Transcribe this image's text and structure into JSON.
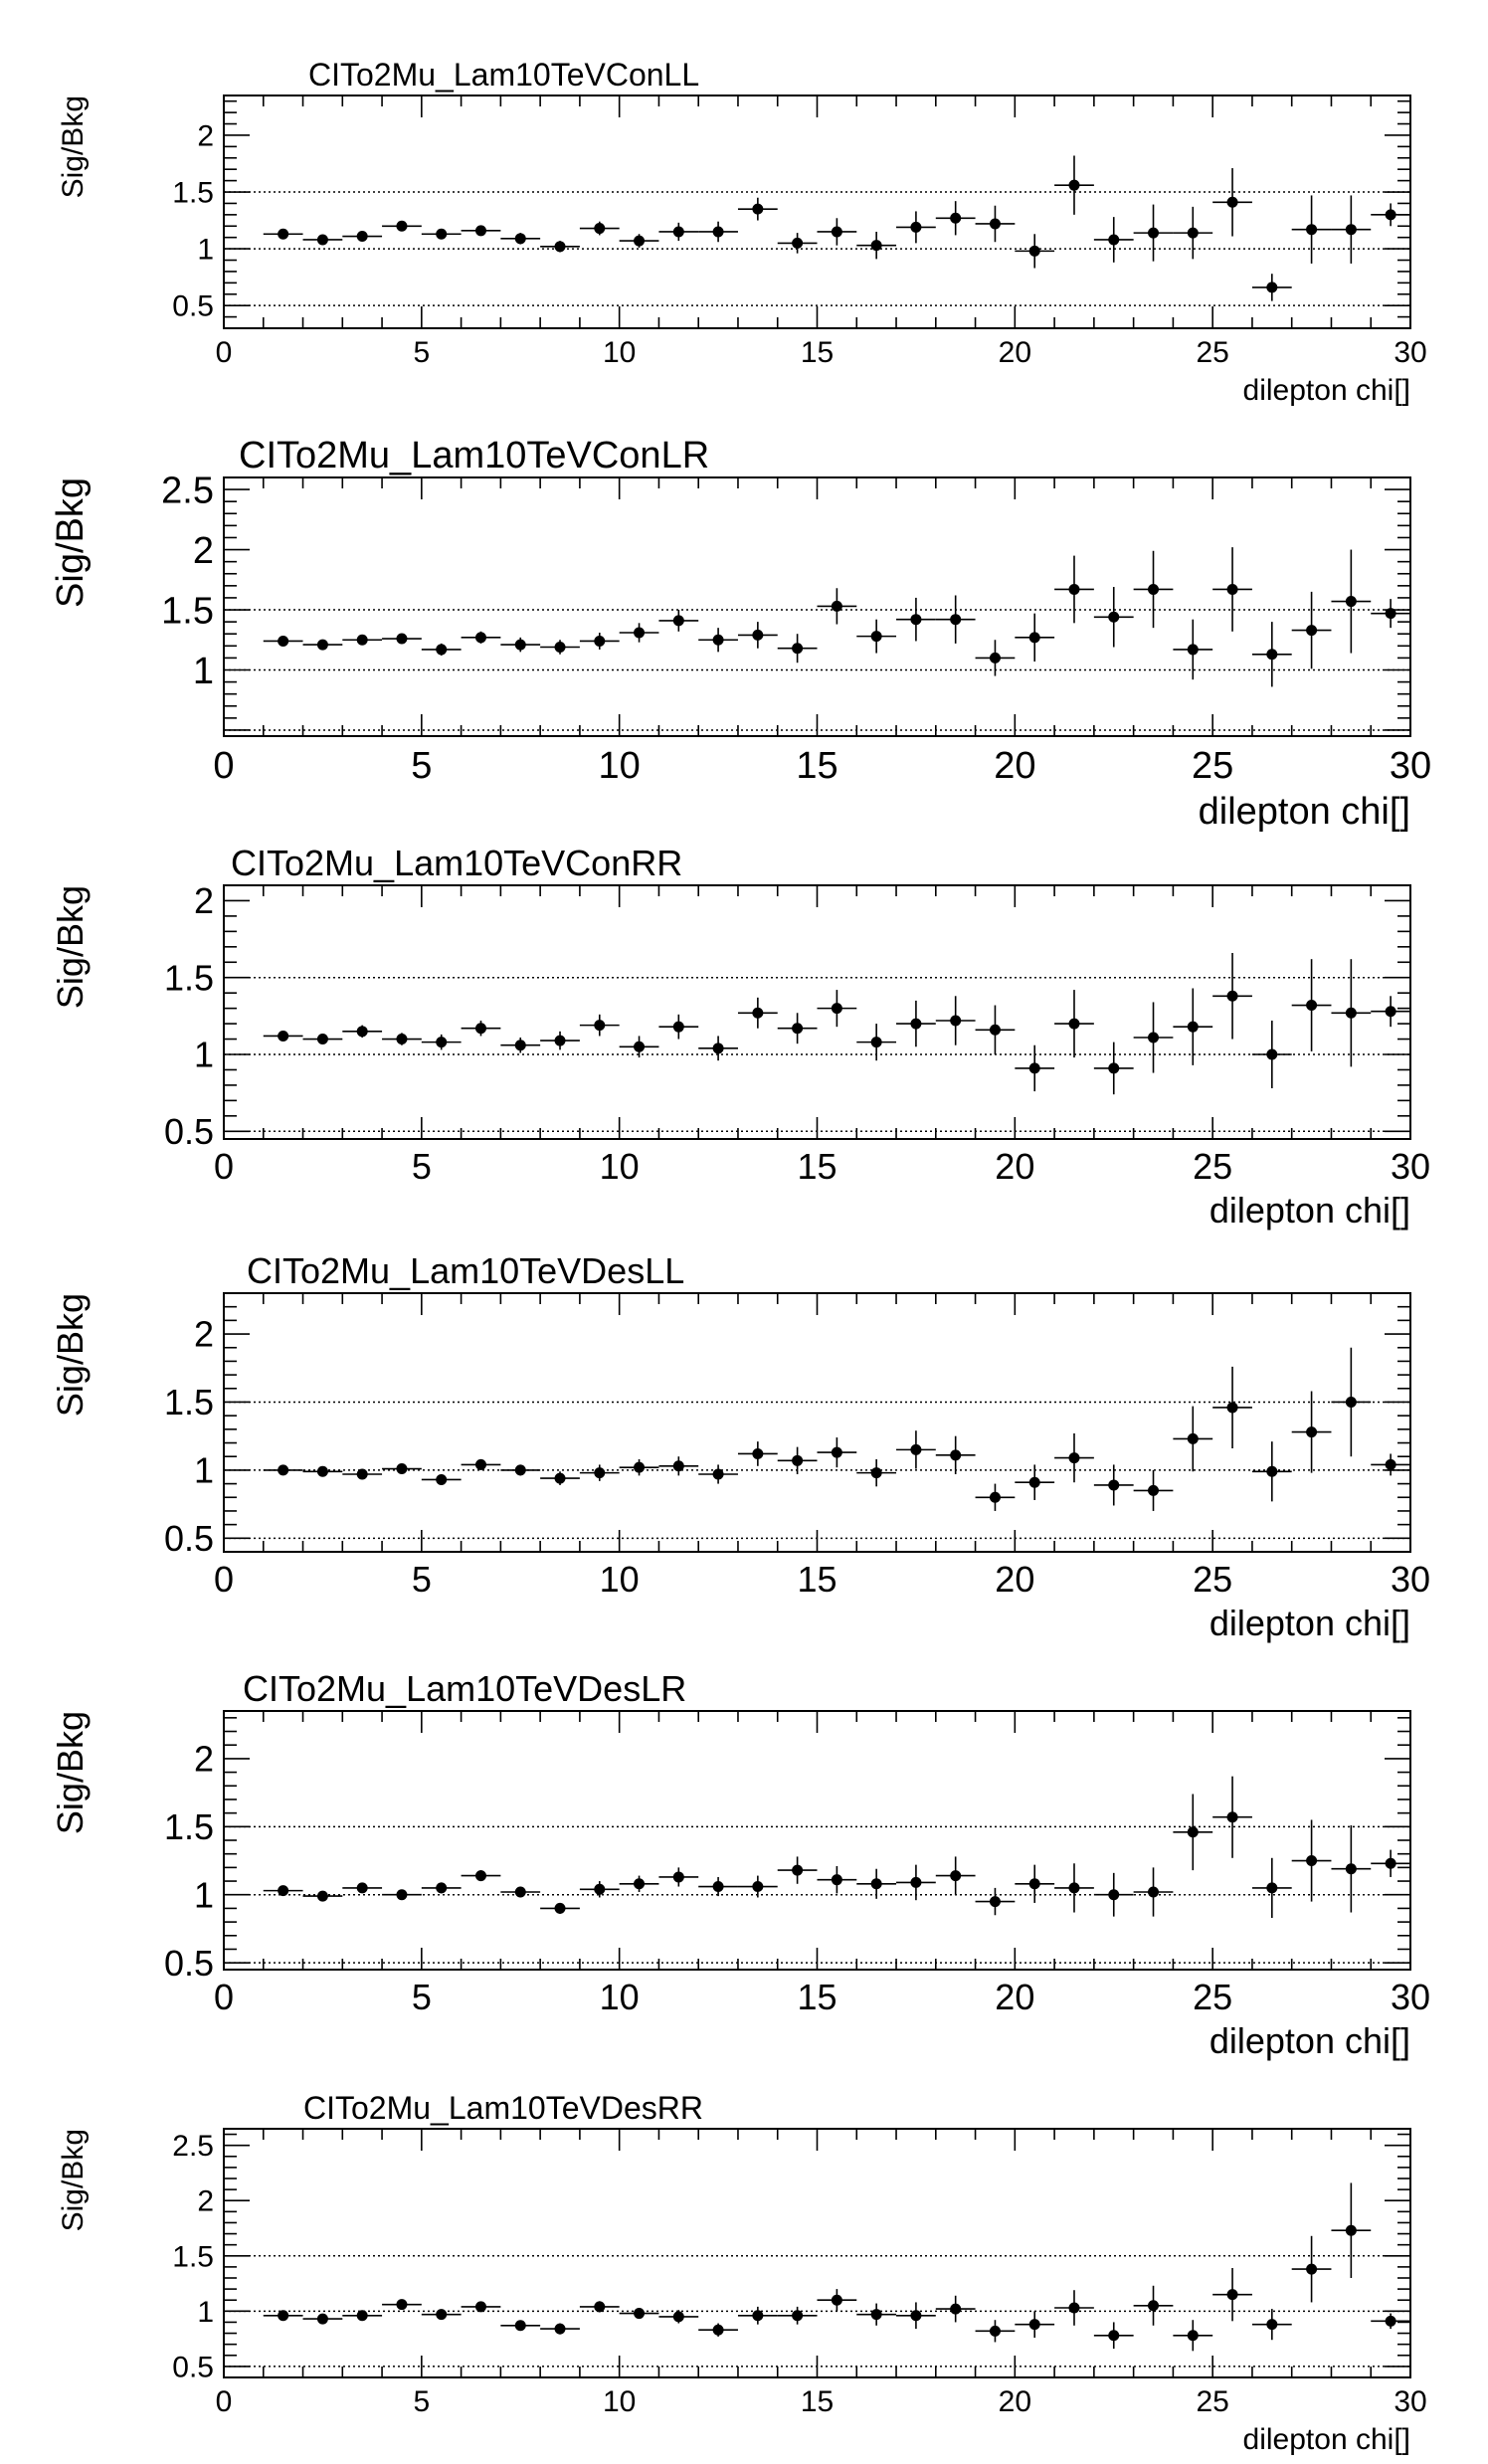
{
  "chart_data": [
    {
      "type": "scatter",
      "title": "CITo2Mu_Lam10TeVConLL",
      "xlabel": "dilepton chi[]",
      "ylabel": "Sig/Bkg",
      "xlim": [
        0,
        30
      ],
      "ylim": [
        0.3,
        2.35
      ],
      "xticks": [
        0,
        5,
        10,
        15,
        20,
        25,
        30
      ],
      "yticks": [
        0.5,
        1,
        1.5,
        2
      ],
      "ytick_labels": [
        "0.5",
        "1",
        "1.5",
        "2"
      ],
      "reference_lines": [
        0.5,
        1,
        1.5
      ],
      "x": [
        1.5,
        2.5,
        3.5,
        4.5,
        5.5,
        6.5,
        7.5,
        8.5,
        9.5,
        10.5,
        11.5,
        12.5,
        13.5,
        14.5,
        15.5,
        16.5,
        17.5,
        18.5,
        19.5,
        20.5,
        21.5,
        22.5,
        23.5,
        24.5,
        25.5,
        26.5,
        27.5,
        28.5,
        29.5
      ],
      "y": [
        1.13,
        1.08,
        1.11,
        1.2,
        1.13,
        1.16,
        1.09,
        1.02,
        1.18,
        1.07,
        1.15,
        1.15,
        1.35,
        1.05,
        1.15,
        1.03,
        1.19,
        1.27,
        1.22,
        0.98,
        1.56,
        1.08,
        1.14,
        1.14,
        1.41,
        0.66,
        1.17,
        1.17,
        1.3
      ],
      "yerr": [
        0.03,
        0.03,
        0.04,
        0.04,
        0.04,
        0.04,
        0.05,
        0.05,
        0.06,
        0.06,
        0.08,
        0.09,
        0.1,
        0.09,
        0.12,
        0.12,
        0.14,
        0.15,
        0.16,
        0.15,
        0.26,
        0.2,
        0.25,
        0.23,
        0.3,
        0.12,
        0.3,
        0.3,
        0.1
      ]
    },
    {
      "type": "scatter",
      "title": "CITo2Mu_Lam10TeVConLR",
      "xlabel": "dilepton chi[]",
      "ylabel": "Sig/Bkg",
      "xlim": [
        0,
        30
      ],
      "ylim": [
        0.45,
        2.6
      ],
      "xticks": [
        0,
        5,
        10,
        15,
        20,
        25,
        30
      ],
      "yticks": [
        1,
        1.5,
        2,
        2.5
      ],
      "ytick_labels": [
        "1",
        "1.5",
        "2",
        "2.5"
      ],
      "reference_lines": [
        0.5,
        1,
        1.5
      ],
      "x": [
        1.5,
        2.5,
        3.5,
        4.5,
        5.5,
        6.5,
        7.5,
        8.5,
        9.5,
        10.5,
        11.5,
        12.5,
        13.5,
        14.5,
        15.5,
        16.5,
        17.5,
        18.5,
        19.5,
        20.5,
        21.5,
        22.5,
        23.5,
        24.5,
        25.5,
        26.5,
        27.5,
        28.5,
        29.5
      ],
      "y": [
        1.24,
        1.21,
        1.25,
        1.26,
        1.17,
        1.27,
        1.21,
        1.19,
        1.24,
        1.31,
        1.41,
        1.25,
        1.29,
        1.18,
        1.53,
        1.28,
        1.42,
        1.42,
        1.1,
        1.27,
        1.67,
        1.44,
        1.67,
        1.17,
        1.67,
        1.13,
        1.33,
        1.57,
        1.47
      ],
      "yerr": [
        0.03,
        0.03,
        0.04,
        0.04,
        0.05,
        0.05,
        0.06,
        0.06,
        0.07,
        0.08,
        0.09,
        0.1,
        0.11,
        0.12,
        0.15,
        0.14,
        0.18,
        0.2,
        0.15,
        0.2,
        0.28,
        0.25,
        0.32,
        0.25,
        0.35,
        0.27,
        0.32,
        0.43,
        0.12
      ]
    },
    {
      "type": "scatter",
      "title": "CITo2Mu_Lam10TeVConRR",
      "xlabel": "dilepton chi[]",
      "ylabel": "Sig/Bkg",
      "xlim": [
        0,
        30
      ],
      "ylim": [
        0.45,
        2.1
      ],
      "xticks": [
        0,
        5,
        10,
        15,
        20,
        25,
        30
      ],
      "yticks": [
        0.5,
        1,
        1.5,
        2
      ],
      "ytick_labels": [
        "0.5",
        "1",
        "1.5",
        "2"
      ],
      "reference_lines": [
        0.5,
        1,
        1.5
      ],
      "x": [
        1.5,
        2.5,
        3.5,
        4.5,
        5.5,
        6.5,
        7.5,
        8.5,
        9.5,
        10.5,
        11.5,
        12.5,
        13.5,
        14.5,
        15.5,
        16.5,
        17.5,
        18.5,
        19.5,
        20.5,
        21.5,
        22.5,
        23.5,
        24.5,
        25.5,
        26.5,
        27.5,
        28.5,
        29.5
      ],
      "y": [
        1.12,
        1.1,
        1.15,
        1.1,
        1.08,
        1.17,
        1.06,
        1.09,
        1.19,
        1.05,
        1.18,
        1.04,
        1.27,
        1.17,
        1.3,
        1.08,
        1.2,
        1.22,
        1.16,
        0.91,
        1.2,
        0.91,
        1.11,
        1.18,
        1.38,
        1.0,
        1.32,
        1.27,
        1.28
      ],
      "yerr": [
        0.03,
        0.03,
        0.04,
        0.04,
        0.05,
        0.05,
        0.05,
        0.06,
        0.07,
        0.07,
        0.08,
        0.08,
        0.1,
        0.1,
        0.12,
        0.12,
        0.15,
        0.16,
        0.16,
        0.15,
        0.22,
        0.17,
        0.23,
        0.25,
        0.28,
        0.22,
        0.3,
        0.35,
        0.1
      ]
    },
    {
      "type": "scatter",
      "title": "CITo2Mu_Lam10TeVDesLL",
      "xlabel": "dilepton chi[]",
      "ylabel": "Sig/Bkg",
      "xlim": [
        0,
        30
      ],
      "ylim": [
        0.4,
        2.3
      ],
      "xticks": [
        0,
        5,
        10,
        15,
        20,
        25,
        30
      ],
      "yticks": [
        0.5,
        1,
        1.5,
        2
      ],
      "ytick_labels": [
        "0.5",
        "1",
        "1.5",
        "2"
      ],
      "reference_lines": [
        0.5,
        1,
        1.5
      ],
      "x": [
        1.5,
        2.5,
        3.5,
        4.5,
        5.5,
        6.5,
        7.5,
        8.5,
        9.5,
        10.5,
        11.5,
        12.5,
        13.5,
        14.5,
        15.5,
        16.5,
        17.5,
        18.5,
        19.5,
        20.5,
        21.5,
        22.5,
        23.5,
        24.5,
        25.5,
        26.5,
        27.5,
        28.5,
        29.5
      ],
      "y": [
        1.0,
        0.99,
        0.97,
        1.01,
        0.93,
        1.04,
        1.0,
        0.94,
        0.98,
        1.02,
        1.03,
        0.97,
        1.12,
        1.07,
        1.13,
        0.98,
        1.15,
        1.11,
        0.8,
        0.91,
        1.09,
        0.89,
        0.85,
        1.23,
        1.46,
        0.99,
        1.28,
        1.5,
        1.04
      ],
      "yerr": [
        0.02,
        0.03,
        0.03,
        0.03,
        0.04,
        0.04,
        0.04,
        0.05,
        0.06,
        0.06,
        0.07,
        0.07,
        0.09,
        0.1,
        0.11,
        0.1,
        0.14,
        0.14,
        0.1,
        0.13,
        0.18,
        0.15,
        0.15,
        0.24,
        0.3,
        0.22,
        0.3,
        0.4,
        0.08
      ]
    },
    {
      "type": "scatter",
      "title": "CITo2Mu_Lam10TeVDesLR",
      "xlabel": "dilepton chi[]",
      "ylabel": "Sig/Bkg",
      "xlim": [
        0,
        30
      ],
      "ylim": [
        0.45,
        2.35
      ],
      "xticks": [
        0,
        5,
        10,
        15,
        20,
        25,
        30
      ],
      "yticks": [
        0.5,
        1,
        1.5,
        2
      ],
      "ytick_labels": [
        "0.5",
        "1",
        "1.5",
        "2"
      ],
      "reference_lines": [
        0.5,
        1,
        1.5
      ],
      "x": [
        1.5,
        2.5,
        3.5,
        4.5,
        5.5,
        6.5,
        7.5,
        8.5,
        9.5,
        10.5,
        11.5,
        12.5,
        13.5,
        14.5,
        15.5,
        16.5,
        17.5,
        18.5,
        19.5,
        20.5,
        21.5,
        22.5,
        23.5,
        24.5,
        25.5,
        26.5,
        27.5,
        28.5,
        29.5
      ],
      "y": [
        1.03,
        0.99,
        1.05,
        1.0,
        1.05,
        1.14,
        1.02,
        0.9,
        1.04,
        1.08,
        1.13,
        1.06,
        1.06,
        1.18,
        1.11,
        1.08,
        1.09,
        1.14,
        0.95,
        1.08,
        1.05,
        1.0,
        1.02,
        1.46,
        1.57,
        1.05,
        1.25,
        1.19,
        1.23
      ],
      "yerr": [
        0.02,
        0.03,
        0.03,
        0.03,
        0.04,
        0.04,
        0.04,
        0.04,
        0.06,
        0.06,
        0.07,
        0.07,
        0.08,
        0.1,
        0.1,
        0.11,
        0.13,
        0.14,
        0.1,
        0.14,
        0.18,
        0.16,
        0.18,
        0.28,
        0.3,
        0.22,
        0.3,
        0.32,
        0.1
      ]
    },
    {
      "type": "scatter",
      "title": "CITo2Mu_Lam10TeVDesRR",
      "xlabel": "dilepton chi[]",
      "ylabel": "Sig/Bkg",
      "xlim": [
        0,
        30
      ],
      "ylim": [
        0.4,
        2.65
      ],
      "xticks": [
        0,
        5,
        10,
        15,
        20,
        25,
        30
      ],
      "yticks": [
        0.5,
        1,
        1.5,
        2,
        2.5
      ],
      "ytick_labels": [
        "0.5",
        "1",
        "1.5",
        "2",
        "2.5"
      ],
      "reference_lines": [
        0.5,
        1,
        1.5
      ],
      "x": [
        1.5,
        2.5,
        3.5,
        4.5,
        5.5,
        6.5,
        7.5,
        8.5,
        9.5,
        10.5,
        11.5,
        12.5,
        13.5,
        14.5,
        15.5,
        16.5,
        17.5,
        18.5,
        19.5,
        20.5,
        21.5,
        22.5,
        23.5,
        24.5,
        25.5,
        26.5,
        27.5,
        28.5,
        29.5
      ],
      "y": [
        0.96,
        0.93,
        0.96,
        1.06,
        0.97,
        1.04,
        0.87,
        0.84,
        1.04,
        0.98,
        0.95,
        0.83,
        0.96,
        0.96,
        1.1,
        0.97,
        0.96,
        1.02,
        0.82,
        0.88,
        1.03,
        0.78,
        1.05,
        0.78,
        1.15,
        0.88,
        1.38,
        1.73,
        0.91
      ],
      "yerr": [
        0.02,
        0.03,
        0.03,
        0.03,
        0.04,
        0.04,
        0.04,
        0.05,
        0.05,
        0.05,
        0.06,
        0.06,
        0.08,
        0.08,
        0.1,
        0.1,
        0.12,
        0.12,
        0.1,
        0.12,
        0.16,
        0.12,
        0.18,
        0.14,
        0.24,
        0.14,
        0.3,
        0.43,
        0.07
      ]
    }
  ]
}
